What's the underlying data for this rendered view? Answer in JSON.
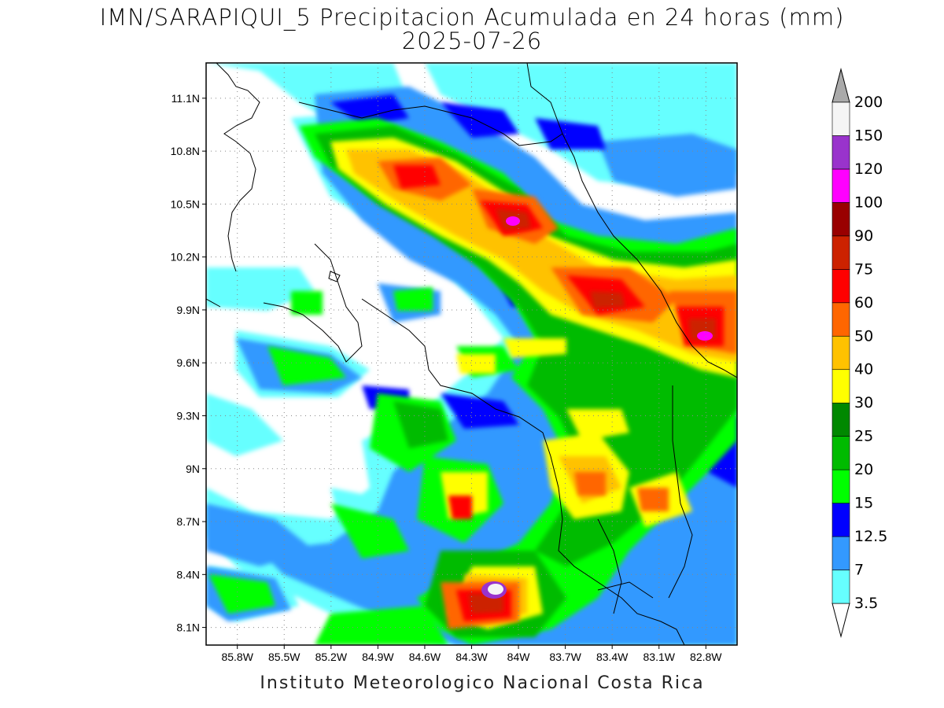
{
  "title": {
    "line1": "IMN/SARAPIQUI_5 Precipitacion Acumulada en 24 horas (mm)",
    "line2": "2025-07-26"
  },
  "footer": "Instituto Meteorologico Nacional Costa Rica",
  "map": {
    "lon_range": [
      -86.0,
      -82.6
    ],
    "lat_range": [
      8.0,
      11.3
    ],
    "lat_ticks": [
      "11.1N",
      "10.8N",
      "10.5N",
      "10.2N",
      "9.9N",
      "9.6N",
      "9.3N",
      "9N",
      "8.7N",
      "8.4N",
      "8.1N"
    ],
    "lat_values": [
      11.1,
      10.8,
      10.5,
      10.2,
      9.9,
      9.6,
      9.3,
      9.0,
      8.7,
      8.4,
      8.1
    ],
    "lon_ticks": [
      "85.8W",
      "85.5W",
      "85.2W",
      "84.9W",
      "84.6W",
      "84.3W",
      "84W",
      "83.7W",
      "83.4W",
      "83.1W",
      "82.8W"
    ],
    "lon_values": [
      -85.8,
      -85.5,
      -85.2,
      -84.9,
      -84.6,
      -84.3,
      -84.0,
      -83.7,
      -83.4,
      -83.1,
      -82.8
    ],
    "grid": "dotted"
  },
  "colorbar": {
    "units": "mm",
    "levels": [
      "3.5",
      "7",
      "12.5",
      "15",
      "20",
      "25",
      "30",
      "40",
      "50",
      "60",
      "75",
      "90",
      "100",
      "120",
      "150",
      "200"
    ],
    "colors": [
      "#ffffff",
      "#66ffff",
      "#3399ff",
      "#0000ff",
      "#00ff00",
      "#00bb00",
      "#008800",
      "#ffff00",
      "#ffc200",
      "#ff6600",
      "#ff0000",
      "#cc2200",
      "#990000",
      "#ff00ff",
      "#9933cc",
      "#f5f5f5",
      "#aaaaaa"
    ]
  },
  "precip_cores": [
    {
      "lon": -84.6,
      "lat": 10.6,
      "level": "60"
    },
    {
      "lon": -84.05,
      "lat": 10.42,
      "level": "100"
    },
    {
      "lon": -83.45,
      "lat": 9.95,
      "level": "75"
    },
    {
      "lon": -82.8,
      "lat": 9.75,
      "level": "100"
    },
    {
      "lon": -84.1,
      "lat": 8.3,
      "level": "120"
    },
    {
      "lon": -83.6,
      "lat": 8.9,
      "level": "60"
    },
    {
      "lon": -84.3,
      "lat": 8.75,
      "level": "50"
    },
    {
      "lon": -83.0,
      "lat": 8.85,
      "level": "50"
    }
  ]
}
